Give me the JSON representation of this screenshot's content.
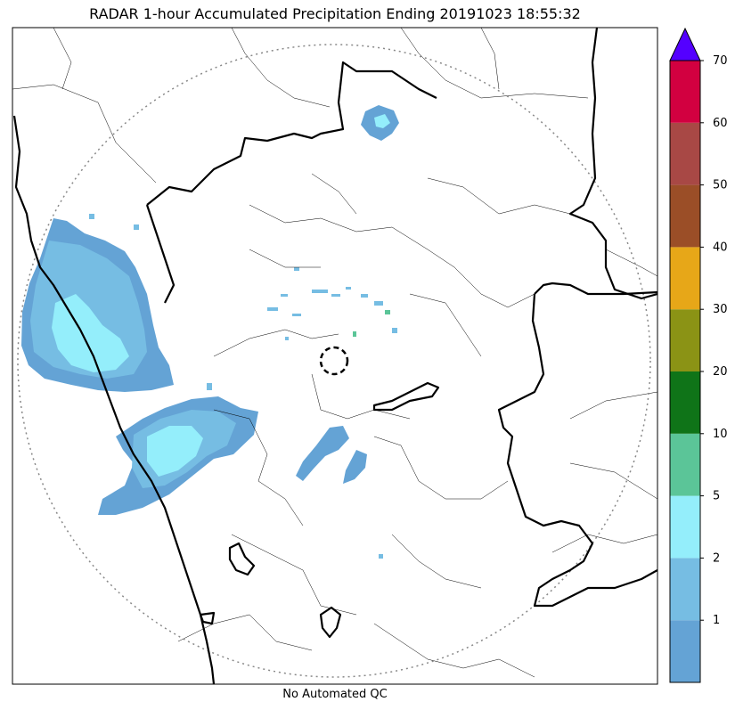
{
  "title": "RADAR 1-hour Accumulated Precipitation Ending 20191023 18:55:32",
  "footer": "No Automated QC",
  "colorbar": {
    "labels": [
      "1",
      "2",
      "5",
      "10",
      "20",
      "30",
      "40",
      "50",
      "60",
      "70"
    ],
    "colors": [
      "#64a3d5",
      "#76bde3",
      "#94eefb",
      "#5bc598",
      "#0f7418",
      "#8b9315",
      "#e7a718",
      "#9b4e27",
      "#a84845",
      "#d20040"
    ],
    "extend_color": "#5400ff"
  },
  "precip_colors": {
    "low": "#64a3d5",
    "mid": "#76bde3",
    "high": "#94eefb",
    "green": "#5bc598"
  },
  "map": {
    "range_ring_color": "#888888",
    "border_color": "#000000"
  }
}
